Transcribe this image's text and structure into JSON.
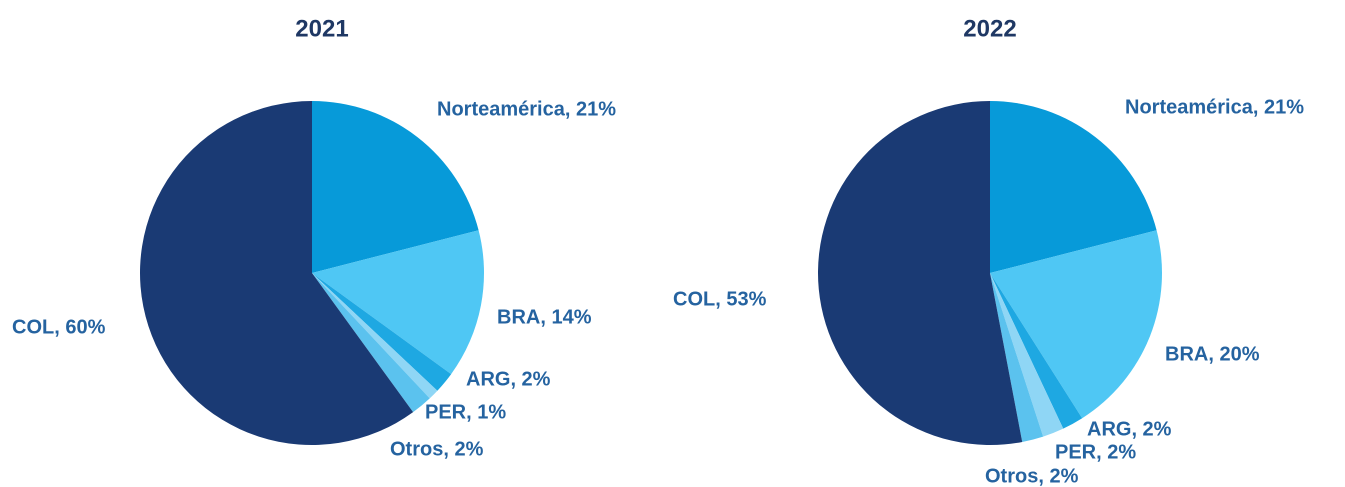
{
  "chart_data": [
    {
      "type": "pie",
      "title": "2021",
      "values": [
        21,
        14,
        2,
        1,
        2,
        60
      ],
      "value_labels": [
        "Norteamérica, 21%",
        "BRA, 14%",
        "ARG, 2%",
        "PER, 1%",
        "Otros, 2%",
        "COL, 60%"
      ],
      "colors": [
        "#079ad9",
        "#4fc7f4",
        "#1ea8e2",
        "#8fd6f5",
        "#5bc2ee",
        "#1a3a74"
      ]
    },
    {
      "type": "pie",
      "title": "2022",
      "values": [
        21,
        20,
        2,
        2,
        2,
        53
      ],
      "value_labels": [
        "Norteamérica, 21%",
        "BRA, 20%",
        "ARG, 2%",
        "PER, 2%",
        "Otros, 2%",
        "COL, 53%"
      ],
      "colors": [
        "#079ad9",
        "#4fc7f4",
        "#1ea8e2",
        "#8fd6f5",
        "#5bc2ee",
        "#1a3a74"
      ]
    }
  ]
}
